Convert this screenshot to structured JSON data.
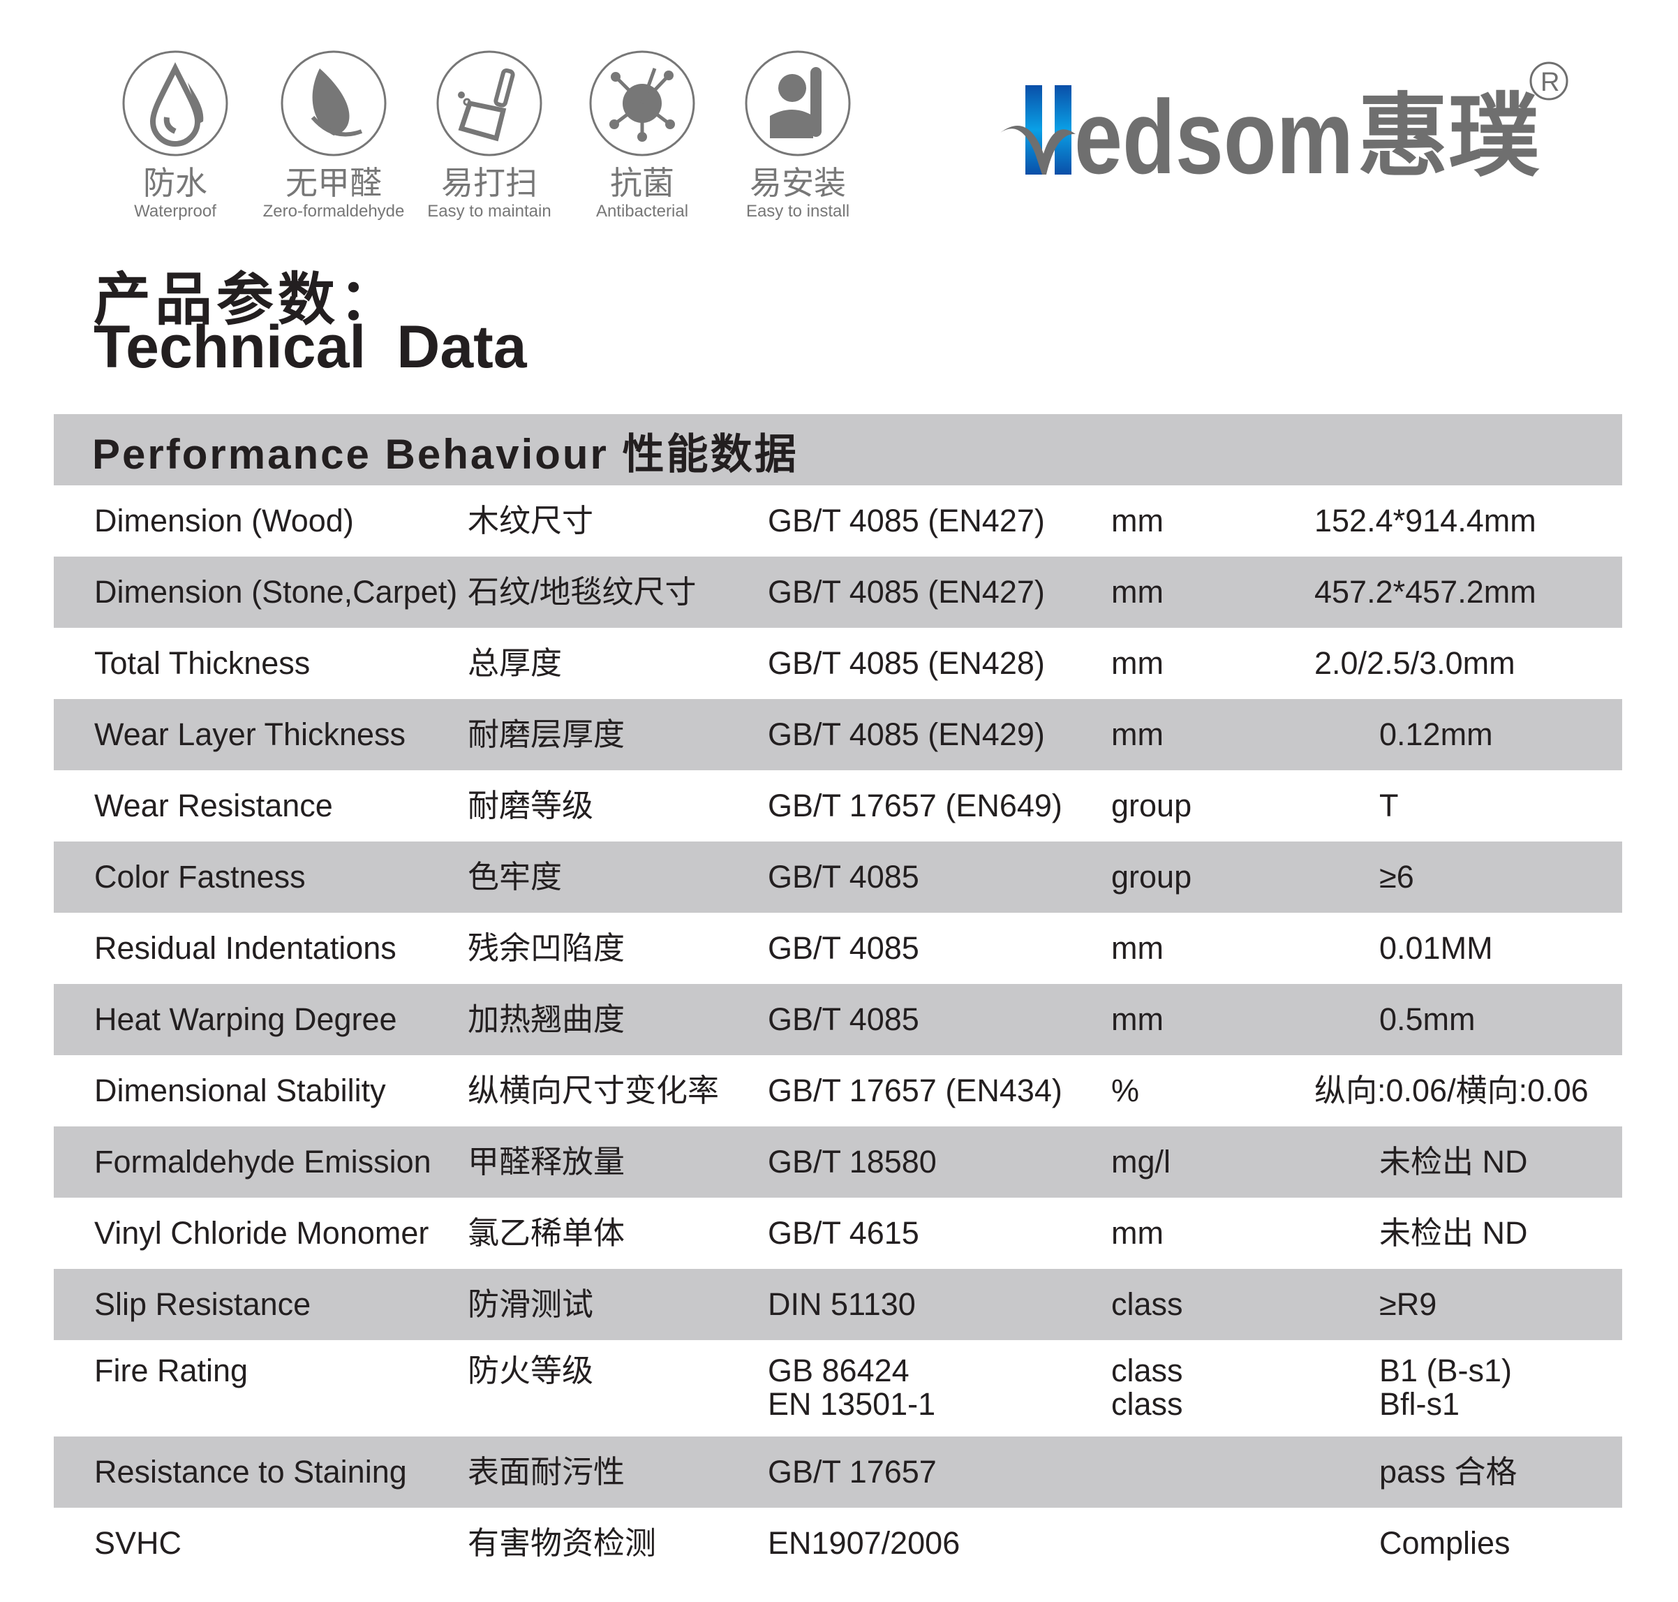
{
  "features": [
    {
      "icon": "water-drop-icon",
      "cn": "防水",
      "en": "Waterproof"
    },
    {
      "icon": "leaf-icon",
      "cn": "无甲醛",
      "en": "Zero-formaldehyde"
    },
    {
      "icon": "broom-icon",
      "cn": "易打扫",
      "en": "Easy to maintain"
    },
    {
      "icon": "bacteria-icon",
      "cn": "抗菌",
      "en": "Antibacterial"
    },
    {
      "icon": "worker-wrench-icon",
      "cn": "易安装",
      "en": "Easy to install"
    }
  ],
  "logo": {
    "text": "Hedsom",
    "cn": "惠璞",
    "registered": "®",
    "colors": {
      "blue": "#0a5fb4",
      "gray": "#6f6f6f"
    }
  },
  "title": {
    "cn": "产品参数：",
    "en": "Technical Data"
  },
  "table": {
    "header": "Performance Behaviour  性能数据",
    "header_bg": "#c8c8ca",
    "rows": [
      {
        "en": "Dimension (Wood)",
        "cn": "木纹尺寸",
        "standard": "GB/T 4085  (EN427)",
        "unit": "mm",
        "value": "152.4*914.4mm"
      },
      {
        "en": "Dimension (Stone,Carpet)",
        "cn": "石纹/地毯纹尺寸",
        "standard": "GB/T 4085  (EN427)",
        "unit": "mm",
        "value": "457.2*457.2mm"
      },
      {
        "en": "Total Thickness",
        "cn": "总厚度",
        "standard": "GB/T 4085  (EN428)",
        "unit": "mm",
        "value": "2.0/2.5/3.0mm"
      },
      {
        "en": "Wear Layer Thickness",
        "cn": "耐磨层厚度",
        "standard": "GB/T 4085  (EN429)",
        "unit": "mm",
        "value": "0.12mm"
      },
      {
        "en": "Wear Resistance",
        "cn": "耐磨等级",
        "standard": "GB/T 17657 (EN649)",
        "unit": "group",
        "value": "T"
      },
      {
        "en": "Color Fastness",
        "cn": "色牢度",
        "standard": "GB/T 4085",
        "unit": "group",
        "value": "≥6"
      },
      {
        "en": "Residual Indentations",
        "cn": "残余凹陷度",
        "standard": "GB/T 4085",
        "unit": "mm",
        "value": "0.01MM"
      },
      {
        "en": "Heat Warping Degree",
        "cn": "加热翘曲度",
        "standard": "GB/T 4085",
        "unit": "mm",
        "value": "0.5mm"
      },
      {
        "en": "Dimensional Stability",
        "cn": "纵横向尺寸变化率",
        "standard": "GB/T 17657 (EN434)",
        "unit": "%",
        "value": "纵向:0.06/横向:0.06"
      },
      {
        "en": "Formaldehyde Emission",
        "cn": "甲醛释放量",
        "standard": "GB/T 18580",
        "unit": "mg/l",
        "value": "未检出  ND"
      },
      {
        "en": "Vinyl Chloride Monomer",
        "cn": "氯乙稀单体",
        "standard": "GB/T 4615",
        "unit": "mm",
        "value": "未检出  ND"
      },
      {
        "en": "Slip Resistance",
        "cn": "防滑测试",
        "standard": "DIN  51130",
        "unit": "class",
        "value": "≥R9"
      },
      {
        "en": "Fire Rating",
        "cn": "防火等级",
        "standard": "GB  86424",
        "standard2": "EN  13501-1",
        "unit": "class",
        "unit2": "class",
        "value": "B1 (B-s1)",
        "value2": "Bfl-s1"
      },
      {
        "en": "Resistance to Staining",
        "cn": "表面耐污性",
        "standard": "GB/T 17657",
        "unit": "",
        "value": "pass  合格"
      },
      {
        "en": "SVHC",
        "cn": "有害物资检测",
        "standard": "EN1907/2006",
        "unit": "",
        "value": "Complies"
      }
    ]
  }
}
